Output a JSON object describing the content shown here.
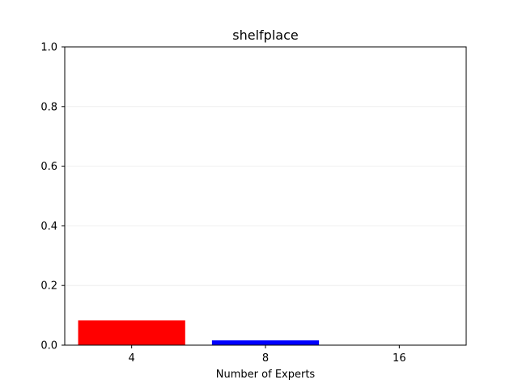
{
  "chart_data": {
    "type": "bar",
    "title": "shelfplace",
    "xlabel": "Number of Experts",
    "ylabel": "",
    "categories": [
      "4",
      "8",
      "16"
    ],
    "values": [
      0.083,
      0.016,
      0.0
    ],
    "bar_colors": [
      "#ff0000",
      "#0000ff",
      "#008000"
    ],
    "ylim": [
      0,
      1.0
    ],
    "yticks": [
      "0.0",
      "0.2",
      "0.4",
      "0.6",
      "0.8",
      "1.0"
    ],
    "grid": "horizontal"
  }
}
